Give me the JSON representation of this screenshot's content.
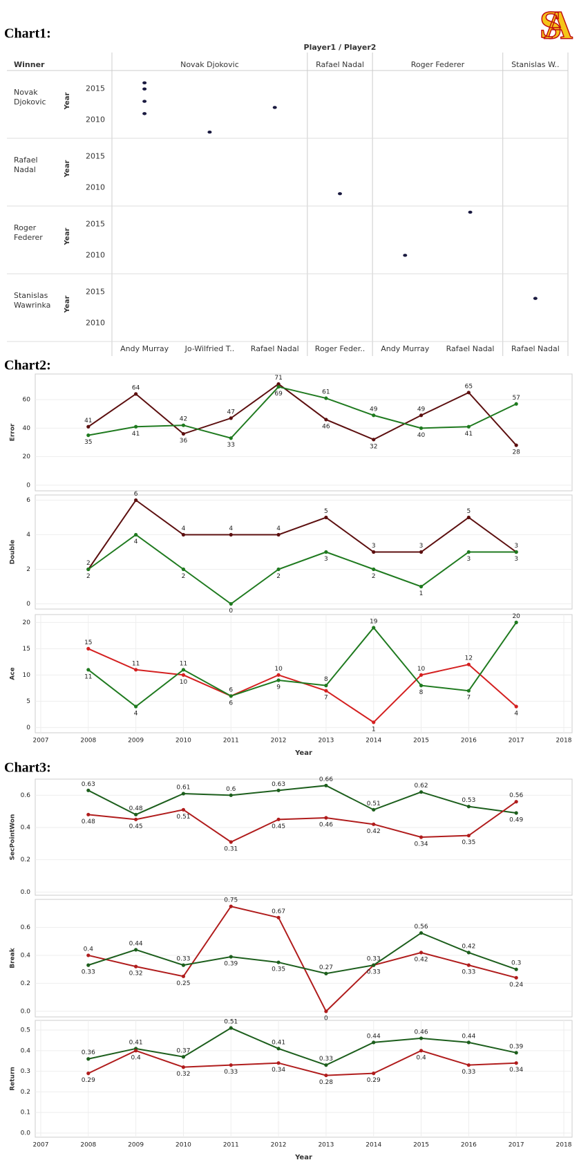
{
  "logo": "SA",
  "headings": [
    "Chart1:",
    "Chart2:",
    "Chart3:"
  ],
  "chart_data": [
    {
      "type": "trellis-scatter",
      "title": "Player1 / Player2",
      "row_header": "Winner",
      "y_label": "Year",
      "ylim": [
        2007,
        2018
      ],
      "yticks": [
        2010,
        2015
      ],
      "color": "#1a1a40",
      "column_groups": [
        {
          "name": "Novak Djokovic",
          "columns": [
            "Andy Murray",
            "Jo-Wilfried T..",
            "Rafael Nadal"
          ]
        },
        {
          "name": "Rafael Nadal",
          "columns": [
            "Roger Feder.."
          ]
        },
        {
          "name": "Roger Federer",
          "columns": [
            "Andy Murray",
            "Rafael Nadal"
          ]
        },
        {
          "name": "Stanislas W..",
          "columns": [
            "Rafael Nadal"
          ]
        }
      ],
      "rows": [
        {
          "winner": "Novak Djokovic",
          "cells": [
            [
              2016,
              2015,
              2013,
              2011
            ],
            [
              2008
            ],
            [
              2012
            ],
            [],
            [],
            [],
            []
          ]
        },
        {
          "winner": "Rafael Nadal",
          "cells": [
            [],
            [],
            [],
            [
              2009
            ],
            [],
            [],
            []
          ]
        },
        {
          "winner": "Roger Federer",
          "cells": [
            [],
            [],
            [],
            [],
            [
              2010
            ],
            [
              2017
            ],
            []
          ]
        },
        {
          "winner": "Stanislas Wawrinka",
          "cells": [
            [],
            [],
            [],
            [],
            [],
            [],
            [
              2014
            ]
          ]
        }
      ]
    },
    {
      "type": "line",
      "y_label": "Error",
      "x": [
        2008,
        2009,
        2010,
        2011,
        2012,
        2013,
        2014,
        2015,
        2016,
        2017
      ],
      "xlim": [
        2007,
        2018
      ],
      "ylim": [
        -4,
        78
      ],
      "yticks": [
        0,
        20,
        40,
        60
      ],
      "series": [
        {
          "color": "#5c0f0f",
          "values": [
            41,
            64,
            36,
            47,
            71,
            46,
            32,
            49,
            65,
            28
          ]
        },
        {
          "color": "#1f7a1f",
          "values": [
            35,
            41,
            42,
            33,
            69,
            61,
            49,
            40,
            41,
            57
          ]
        }
      ]
    },
    {
      "type": "line",
      "y_label": "Double",
      "x": [
        2008,
        2009,
        2010,
        2011,
        2012,
        2013,
        2014,
        2015,
        2016,
        2017
      ],
      "xlim": [
        2007,
        2018
      ],
      "ylim": [
        -0.3,
        6.3
      ],
      "yticks": [
        0,
        2,
        4,
        6
      ],
      "series": [
        {
          "color": "#5c0f0f",
          "values": [
            2,
            6,
            4,
            4,
            4,
            5,
            3,
            3,
            5,
            3
          ]
        },
        {
          "color": "#1f7a1f",
          "values": [
            2,
            4,
            2,
            0,
            2,
            3,
            2,
            1,
            3,
            3
          ]
        }
      ]
    },
    {
      "type": "line",
      "y_label": "Ace",
      "x_label": "Year",
      "x": [
        2008,
        2009,
        2010,
        2011,
        2012,
        2013,
        2014,
        2015,
        2016,
        2017
      ],
      "xlim": [
        2007,
        2018
      ],
      "xticks": [
        2007,
        2008,
        2009,
        2010,
        2011,
        2012,
        2013,
        2014,
        2015,
        2016,
        2017,
        2018
      ],
      "ylim": [
        -1,
        21.5
      ],
      "yticks": [
        0,
        5,
        10,
        15,
        20
      ],
      "series": [
        {
          "color": "#d42020",
          "values": [
            15,
            11,
            10,
            6,
            10,
            7,
            1,
            10,
            12,
            4
          ]
        },
        {
          "color": "#1f7a1f",
          "values": [
            11,
            4,
            11,
            6,
            9,
            8,
            19,
            8,
            7,
            20
          ]
        }
      ]
    },
    {
      "type": "line",
      "y_label": "SecPointWon",
      "x": [
        2008,
        2009,
        2010,
        2011,
        2012,
        2013,
        2014,
        2015,
        2016,
        2017
      ],
      "xlim": [
        2007,
        2018
      ],
      "ylim": [
        -0.02,
        0.7
      ],
      "yticks": [
        {
          "value": 0,
          "label": "0.0"
        },
        0.2,
        0.4,
        0.6
      ],
      "series": [
        {
          "color": "#1c5e1c",
          "values": [
            0.63,
            0.48,
            0.61,
            0.6,
            0.63,
            0.66,
            0.51,
            0.62,
            0.53,
            0.49
          ]
        },
        {
          "color": "#b01c1c",
          "values": [
            0.48,
            0.45,
            0.51,
            0.31,
            0.45,
            0.46,
            0.42,
            0.34,
            0.35,
            0.56
          ]
        }
      ]
    },
    {
      "type": "line",
      "y_label": "Break",
      "x": [
        2008,
        2009,
        2010,
        2011,
        2012,
        2013,
        2014,
        2015,
        2016,
        2017
      ],
      "xlim": [
        2007,
        2018
      ],
      "ylim": [
        -0.04,
        0.8
      ],
      "yticks": [
        {
          "value": 0,
          "label": "0.0"
        },
        0.2,
        0.4,
        0.6
      ],
      "series": [
        {
          "color": "#b01c1c",
          "values": [
            0.4,
            0.32,
            0.25,
            0.75,
            0.67,
            0,
            0.33,
            0.42,
            0.33,
            0.24
          ]
        },
        {
          "color": "#1c5e1c",
          "values": [
            0.33,
            0.44,
            0.33,
            0.39,
            0.35,
            0.27,
            0.33,
            0.56,
            0.42,
            0.3
          ]
        }
      ]
    },
    {
      "type": "line",
      "y_label": "Return",
      "x_label": "Year",
      "x": [
        2008,
        2009,
        2010,
        2011,
        2012,
        2013,
        2014,
        2015,
        2016,
        2017
      ],
      "xlim": [
        2007,
        2018
      ],
      "xticks": [
        2007,
        2008,
        2009,
        2010,
        2011,
        2012,
        2013,
        2014,
        2015,
        2016,
        2017,
        2018
      ],
      "ylim": [
        -0.02,
        0.547
      ],
      "yticks": [
        {
          "value": 0,
          "label": "0.0"
        },
        0.1,
        0.2,
        0.3,
        0.4,
        0.5
      ],
      "series": [
        {
          "color": "#1c5e1c",
          "values": [
            0.36,
            0.41,
            0.37,
            0.51,
            0.41,
            0.33,
            0.44,
            0.46,
            0.44,
            0.39
          ]
        },
        {
          "color": "#b01c1c",
          "values": [
            0.29,
            0.4,
            0.32,
            0.33,
            0.34,
            0.28,
            0.29,
            0.4,
            0.33,
            0.34
          ]
        }
      ]
    }
  ]
}
